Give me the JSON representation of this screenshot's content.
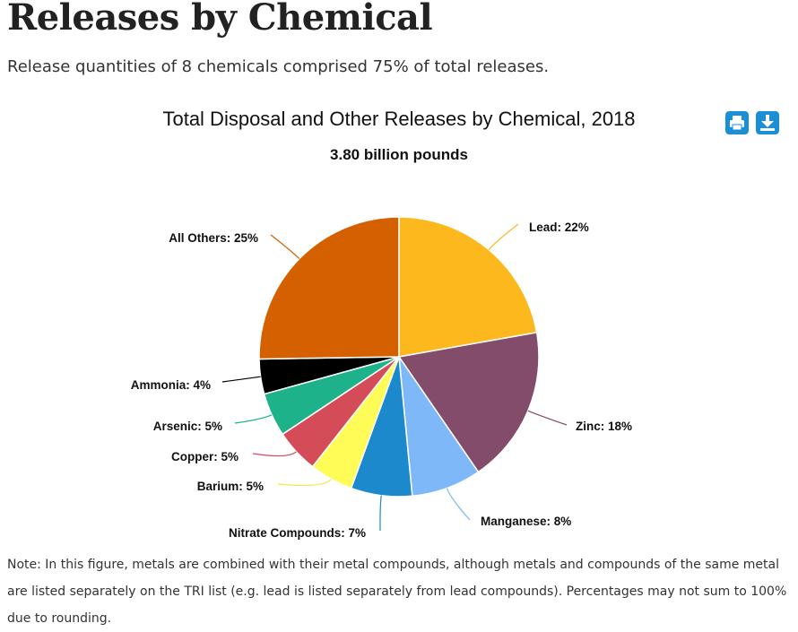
{
  "page": {
    "title": "Releases by Chemical",
    "subtitle": "Release quantities of 8 chemicals comprised 75% of total releases.",
    "note": "Note: In this figure, metals are combined with their metal compounds, although metals and compounds of the same metal are listed separately on the TRI list (e.g. lead is listed separately from lead compounds). Percentages may not sum to 100% due to rounding."
  },
  "toolbar": {
    "print_icon": "printer-icon",
    "download_icon": "download-icon",
    "accent_color": "#1a8fd6"
  },
  "chart_data": {
    "type": "pie",
    "title": "Total Disposal and Other Releases by Chemical, 2018",
    "subtitle": "3.80 billion pounds",
    "slices": [
      {
        "name": "Lead",
        "value": 22,
        "label": "Lead: 22%",
        "color": "#fdb81e"
      },
      {
        "name": "Zinc",
        "value": 18,
        "label": "Zinc: 18%",
        "color": "#834c6b"
      },
      {
        "name": "Manganese",
        "value": 8,
        "label": "Manganese: 8%",
        "color": "#7fb8f8"
      },
      {
        "name": "Nitrate Compounds",
        "value": 7,
        "label": "Nitrate Compounds: 7%",
        "color": "#1c89cd"
      },
      {
        "name": "Barium",
        "value": 5,
        "label": "Barium: 5%",
        "color": "#fffc58"
      },
      {
        "name": "Copper",
        "value": 5,
        "label": "Copper: 5%",
        "color": "#d54c59"
      },
      {
        "name": "Arsenic",
        "value": 5,
        "label": "Arsenic: 5%",
        "color": "#1eb28a"
      },
      {
        "name": "Ammonia",
        "value": 4,
        "label": "Ammonia: 4%",
        "color": "#000000"
      },
      {
        "name": "All Others",
        "value": 25,
        "label": "All Others: 25%",
        "color": "#d46000"
      }
    ]
  }
}
